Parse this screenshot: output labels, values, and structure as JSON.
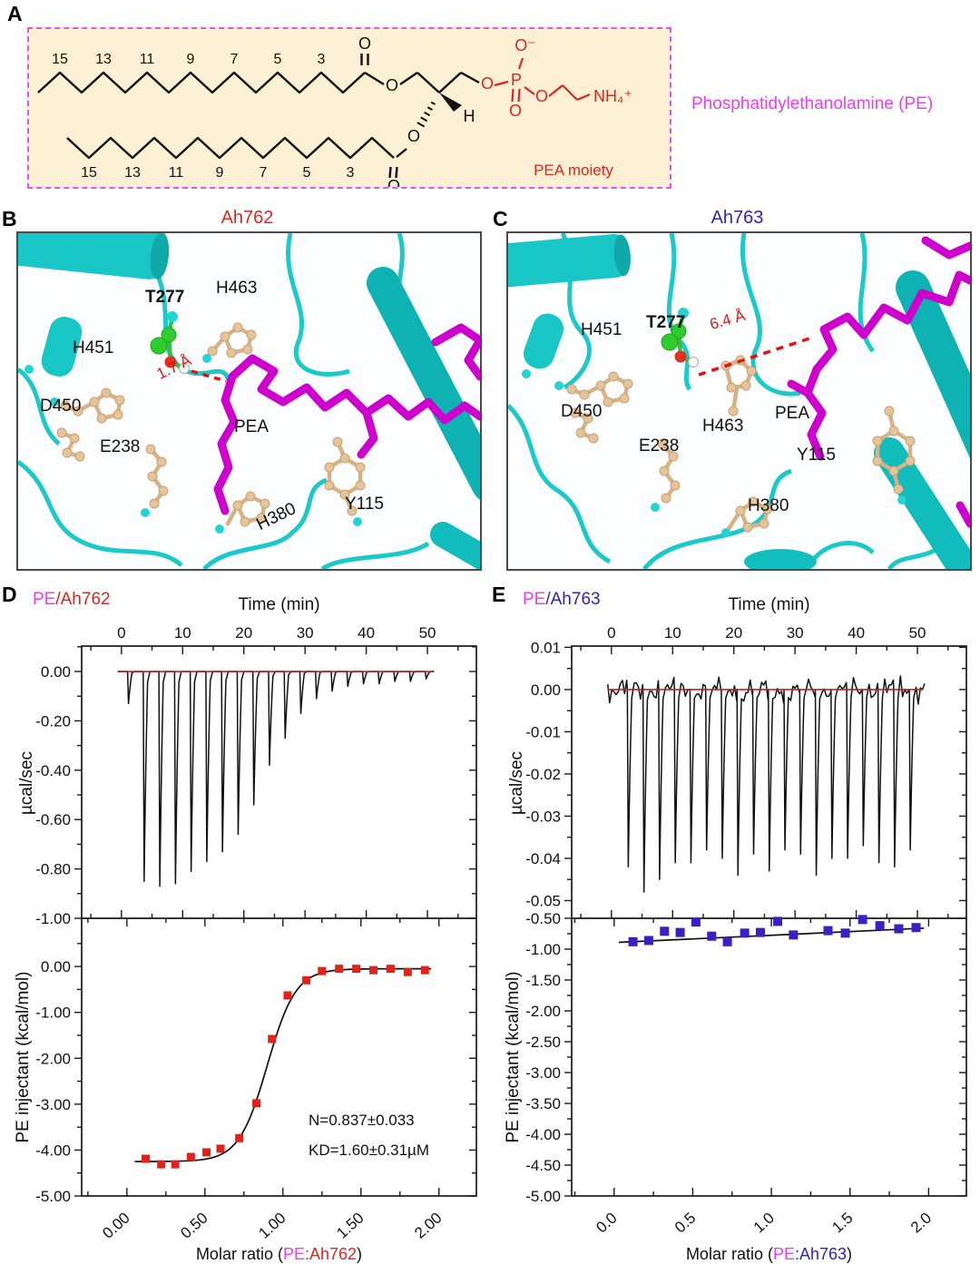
{
  "panelA": {
    "label": "A",
    "name": "Phosphatidylethanolamine (PE)",
    "pea_moiety_label": "PEA moiety",
    "chain_numbers_top": [
      "15",
      "13",
      "11",
      "9",
      "7",
      "5",
      "3"
    ],
    "chain_numbers_bottom": [
      "15",
      "13",
      "11",
      "9",
      "7",
      "5",
      "3"
    ],
    "atoms": {
      "o": "O",
      "p": "P",
      "o_minus": "O⁻",
      "nh4": "NH₄⁺",
      "h": "H"
    },
    "colors": {
      "box_bg": "#fcf0d4",
      "box_border": "#e94fe9",
      "structure_black": "#111111",
      "pea_red": "#e2231e",
      "pe_magenta": "#ee3cee"
    }
  },
  "panelB": {
    "label": "B",
    "title": "Ah762",
    "title_color": "#e2231e",
    "labels": {
      "h451": "H451",
      "t277": "T277",
      "h463": "H463",
      "d450": "D450",
      "e238": "E238",
      "pea": "PEA",
      "h380": "H380",
      "y115": "Y115"
    },
    "distance": "1.7 Å"
  },
  "panelC": {
    "label": "C",
    "title": "Ah763",
    "title_color": "#2b23c4",
    "labels": {
      "h451": "H451",
      "t277": "T277",
      "h463": "H463",
      "d450": "D450",
      "e238": "E238",
      "pea": "PEA",
      "h380": "H380",
      "y115": "Y115"
    },
    "distance": "6.4 Å"
  },
  "panelD": {
    "label": "D",
    "title_pe": "PE",
    "title_rest": "/Ah762",
    "xtitle": {
      "prefix": "Molar ratio (",
      "pe": "PE",
      "rest": ":Ah762",
      "suffix": ")"
    }
  },
  "panelE": {
    "label": "E",
    "title_pe": "PE",
    "title_rest": "/Ah763",
    "xtitle": {
      "prefix": "Molar ratio (",
      "pe": "PE",
      "rest": ":Ah763",
      "suffix": ")"
    }
  },
  "chart_data": [
    {
      "id": "d_thermogram",
      "type": "line",
      "title": "PE/Ah762",
      "xlabel": "Time (min)",
      "ylabel": "µcal/sec",
      "xlim": [
        -6.5,
        58
      ],
      "ylim": [
        -1.0,
        0.103
      ],
      "xticks": [
        0,
        10,
        20,
        30,
        40,
        50
      ],
      "yticks": [
        0,
        -0.2,
        -0.4,
        -0.6,
        -0.8,
        -1.0
      ],
      "xtick_decimals": 0,
      "ytick_decimals": 2,
      "baseline": 0,
      "baseline_color": "#c42020",
      "trace_color": "#111111",
      "injection_start": 1.0,
      "injection_interval": 2.56,
      "noise_amplitude": 0,
      "spike_depths": [
        -0.13,
        -0.85,
        -0.87,
        -0.86,
        -0.81,
        -0.77,
        -0.73,
        -0.66,
        -0.54,
        -0.38,
        -0.27,
        -0.17,
        -0.11,
        -0.08,
        -0.06,
        -0.05,
        -0.05,
        -0.04,
        -0.04,
        -0.03
      ]
    },
    {
      "id": "d_isotherm",
      "type": "scatter",
      "xlabel": "Molar ratio (PE:Ah762)",
      "ylabel": "PE injectant (kcal/mol)",
      "xlim": [
        -0.29,
        2.24
      ],
      "ylim": [
        -5.0,
        1.05
      ],
      "xticks": [
        0,
        0.5,
        1.0,
        1.5,
        2.0
      ],
      "yticks": [
        0,
        -1,
        -2,
        -3,
        -4,
        -5
      ],
      "xtick_decimals": 2,
      "ytick_decimals": 2,
      "marker_color": "#e32119",
      "fit_color": "#111111",
      "points": [
        [
          0.12,
          -4.19
        ],
        [
          0.22,
          -4.31
        ],
        [
          0.31,
          -4.31
        ],
        [
          0.41,
          -4.15
        ],
        [
          0.51,
          -4.05
        ],
        [
          0.6,
          -3.97
        ],
        [
          0.72,
          -3.74
        ],
        [
          0.83,
          -2.98
        ],
        [
          0.93,
          -1.58
        ],
        [
          1.03,
          -0.63
        ],
        [
          1.15,
          -0.3
        ],
        [
          1.25,
          -0.1
        ],
        [
          1.36,
          -0.05
        ],
        [
          1.47,
          -0.05
        ],
        [
          1.58,
          -0.08
        ],
        [
          1.69,
          -0.05
        ],
        [
          1.8,
          -0.12
        ],
        [
          1.91,
          -0.08
        ]
      ],
      "fit": {
        "type": "sigmoid",
        "lower": -4.25,
        "upper": -0.05,
        "midpoint": 0.9,
        "steepness": 11,
        "xstart": 0.05,
        "xend": 1.95
      },
      "annotations": [
        "N=0.837±0.033",
        "KD=1.60±0.31µM"
      ]
    },
    {
      "id": "e_thermogram",
      "type": "line",
      "title": "PE/Ah763",
      "xlabel": "Time (min)",
      "ylabel": "µcal/sec",
      "xlim": [
        -6.5,
        58
      ],
      "ylim": [
        -0.0542,
        0.0103
      ],
      "xticks": [
        0,
        10,
        20,
        30,
        40,
        50
      ],
      "yticks": [
        0.01,
        0,
        -0.01,
        -0.02,
        -0.03,
        -0.04,
        -0.05
      ],
      "xtick_decimals": 0,
      "ytick_decimals": 2,
      "baseline": 0,
      "baseline_color": "#c42020",
      "trace_color": "#111111",
      "injection_start": 2.6,
      "injection_interval": 2.56,
      "noise_amplitude": 0.0009,
      "spike_depths": [
        -0.042,
        -0.048,
        -0.045,
        -0.041,
        -0.041,
        -0.038,
        -0.04,
        -0.044,
        -0.039,
        -0.043,
        -0.038,
        -0.039,
        -0.044,
        -0.04,
        -0.04,
        -0.037,
        -0.041,
        -0.042,
        -0.038
      ]
    },
    {
      "id": "e_isotherm",
      "type": "scatter",
      "xlabel": "Molar ratio (PE:Ah763)",
      "ylabel": "PE injectant (kcal/mol)",
      "xlim": [
        -0.27,
        2.24
      ],
      "ylim": [
        -5.0,
        -0.5
      ],
      "xticks": [
        0,
        0.5,
        1.0,
        1.5,
        2.0
      ],
      "yticks": [
        -0.5,
        -1,
        -1.5,
        -2,
        -2.5,
        -3,
        -3.5,
        -4,
        -4.5,
        -5
      ],
      "xtick_decimals": 1,
      "ytick_decimals": 2,
      "marker_color": "#3a1fc9",
      "fit_color": "#111111",
      "points": [
        [
          0.12,
          -0.88
        ],
        [
          0.22,
          -0.86
        ],
        [
          0.32,
          -0.71
        ],
        [
          0.42,
          -0.73
        ],
        [
          0.52,
          -0.56
        ],
        [
          0.62,
          -0.79
        ],
        [
          0.72,
          -0.88
        ],
        [
          0.83,
          -0.74
        ],
        [
          0.93,
          -0.73
        ],
        [
          1.04,
          -0.55
        ],
        [
          1.14,
          -0.77
        ],
        [
          1.36,
          -0.7
        ],
        [
          1.47,
          -0.74
        ],
        [
          1.58,
          -0.52
        ],
        [
          1.69,
          -0.62
        ],
        [
          1.81,
          -0.67
        ],
        [
          1.92,
          -0.65
        ]
      ],
      "fit": {
        "type": "linear",
        "x1": 0.03,
        "y1": -0.89,
        "x2": 1.97,
        "y2": -0.66
      },
      "annotations": []
    }
  ]
}
